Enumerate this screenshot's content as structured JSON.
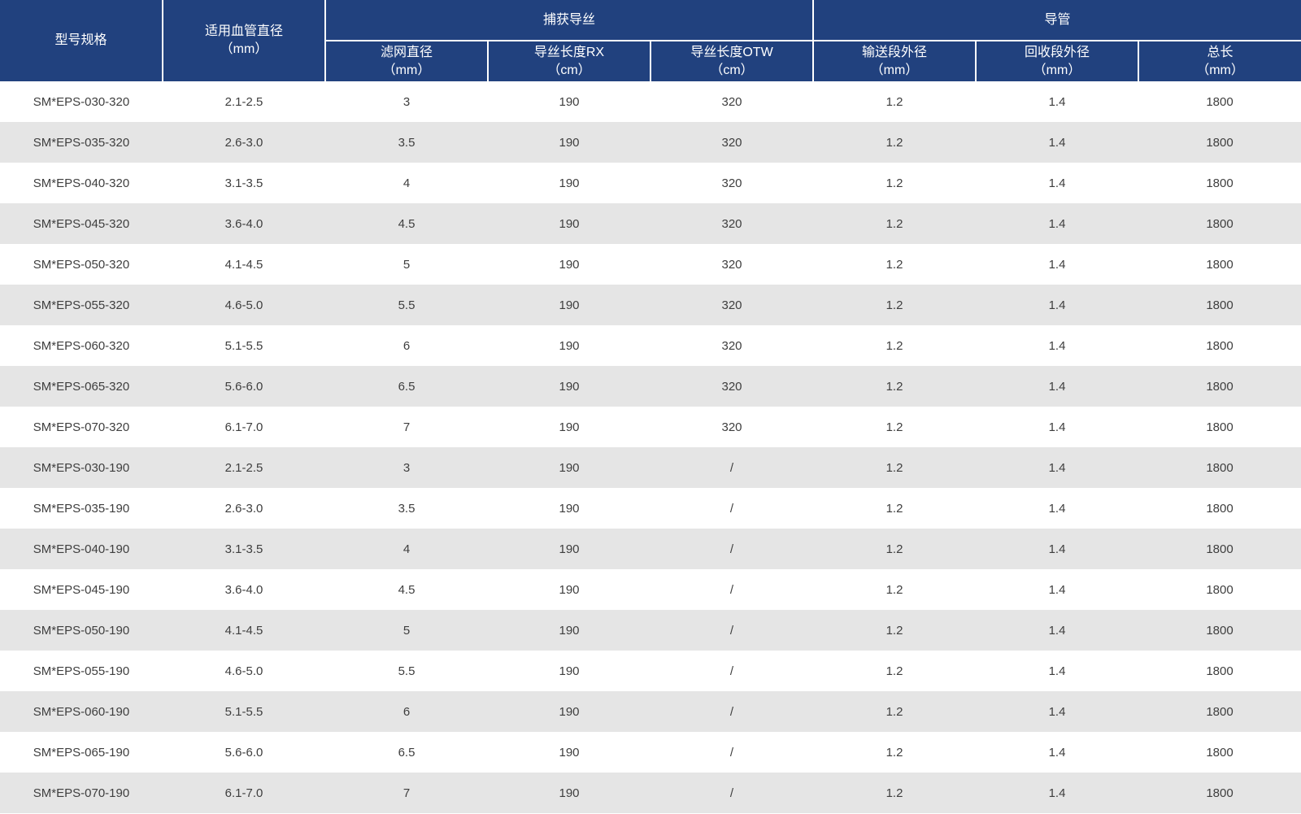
{
  "table": {
    "header": {
      "model_spec": "型号规格",
      "vessel_diameter": {
        "line1": "适用血管直径",
        "line2": "（mm）"
      },
      "groups": [
        {
          "label": "捕获导丝",
          "cols": [
            {
              "line1": "滤网直径",
              "line2": "（mm）"
            },
            {
              "line1": "导丝长度RX",
              "line2": "（cm）"
            },
            {
              "line1": "导丝长度OTW",
              "line2": "（cm）"
            }
          ]
        },
        {
          "label": "导管",
          "cols": [
            {
              "line1": "输送段外径",
              "line2": "（mm）"
            },
            {
              "line1": "回收段外径",
              "line2": "（mm）"
            },
            {
              "line1": "总长",
              "line2": "（mm）"
            }
          ]
        }
      ]
    },
    "rows": [
      [
        "SM*EPS-030-320",
        "2.1-2.5",
        "3",
        "190",
        "320",
        "1.2",
        "1.4",
        "1800"
      ],
      [
        "SM*EPS-035-320",
        "2.6-3.0",
        "3.5",
        "190",
        "320",
        "1.2",
        "1.4",
        "1800"
      ],
      [
        "SM*EPS-040-320",
        "3.1-3.5",
        "4",
        "190",
        "320",
        "1.2",
        "1.4",
        "1800"
      ],
      [
        "SM*EPS-045-320",
        "3.6-4.0",
        "4.5",
        "190",
        "320",
        "1.2",
        "1.4",
        "1800"
      ],
      [
        "SM*EPS-050-320",
        "4.1-4.5",
        "5",
        "190",
        "320",
        "1.2",
        "1.4",
        "1800"
      ],
      [
        "SM*EPS-055-320",
        "4.6-5.0",
        "5.5",
        "190",
        "320",
        "1.2",
        "1.4",
        "1800"
      ],
      [
        "SM*EPS-060-320",
        "5.1-5.5",
        "6",
        "190",
        "320",
        "1.2",
        "1.4",
        "1800"
      ],
      [
        "SM*EPS-065-320",
        "5.6-6.0",
        "6.5",
        "190",
        "320",
        "1.2",
        "1.4",
        "1800"
      ],
      [
        "SM*EPS-070-320",
        "6.1-7.0",
        "7",
        "190",
        "320",
        "1.2",
        "1.4",
        "1800"
      ],
      [
        "SM*EPS-030-190",
        "2.1-2.5",
        "3",
        "190",
        "/",
        "1.2",
        "1.4",
        "1800"
      ],
      [
        "SM*EPS-035-190",
        "2.6-3.0",
        "3.5",
        "190",
        "/",
        "1.2",
        "1.4",
        "1800"
      ],
      [
        "SM*EPS-040-190",
        "3.1-3.5",
        "4",
        "190",
        "/",
        "1.2",
        "1.4",
        "1800"
      ],
      [
        "SM*EPS-045-190",
        "3.6-4.0",
        "4.5",
        "190",
        "/",
        "1.2",
        "1.4",
        "1800"
      ],
      [
        "SM*EPS-050-190",
        "4.1-4.5",
        "5",
        "190",
        "/",
        "1.2",
        "1.4",
        "1800"
      ],
      [
        "SM*EPS-055-190",
        "4.6-5.0",
        "5.5",
        "190",
        "/",
        "1.2",
        "1.4",
        "1800"
      ],
      [
        "SM*EPS-060-190",
        "5.1-5.5",
        "6",
        "190",
        "/",
        "1.2",
        "1.4",
        "1800"
      ],
      [
        "SM*EPS-065-190",
        "5.6-6.0",
        "6.5",
        "190",
        "/",
        "1.2",
        "1.4",
        "1800"
      ],
      [
        "SM*EPS-070-190",
        "6.1-7.0",
        "7",
        "190",
        "/",
        "1.2",
        "1.4",
        "1800"
      ]
    ]
  },
  "colors": {
    "header_bg": "#21417e",
    "header_text": "#ffffff",
    "row_bg": "#ffffff",
    "row_alt_bg": "#e5e5e5",
    "data_text": "#3e3e3e",
    "divider": "#ffffff"
  }
}
